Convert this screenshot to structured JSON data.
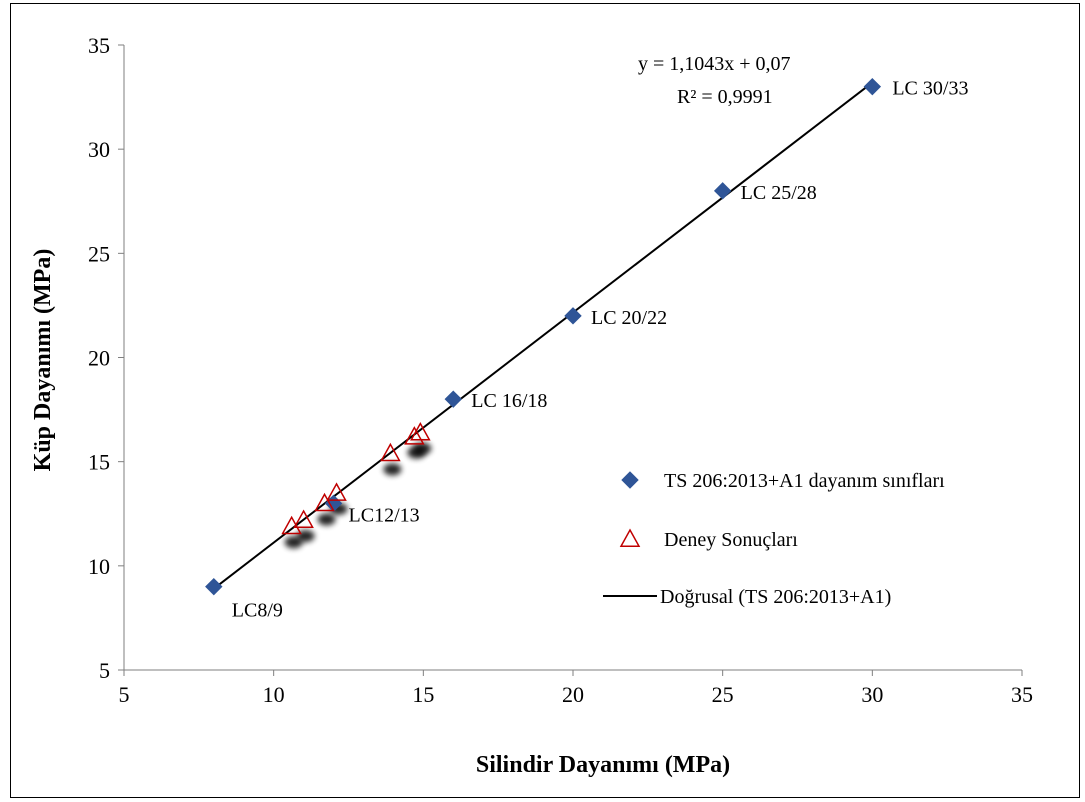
{
  "chart_data": {
    "type": "scatter",
    "xlabel": "Silindir Dayanımı (MPa)",
    "ylabel": "Küp Dayanımı (MPa)",
    "xlim": [
      5,
      35
    ],
    "ylim": [
      5,
      35
    ],
    "xticks": [
      5,
      10,
      15,
      20,
      25,
      30,
      35
    ],
    "yticks": [
      5,
      10,
      15,
      20,
      25,
      30,
      35
    ],
    "grid": false,
    "legend_position": "right",
    "series": [
      {
        "name": "TS 206:2013+A1 dayanım sınıfları",
        "marker": "diamond",
        "color": "#2F5597",
        "points": [
          {
            "x": 8,
            "y": 9,
            "label": "LC8/9"
          },
          {
            "x": 12,
            "y": 13,
            "label": "LC12/13"
          },
          {
            "x": 16,
            "y": 18,
            "label": "LC 16/18"
          },
          {
            "x": 20,
            "y": 22,
            "label": "LC 20/22"
          },
          {
            "x": 25,
            "y": 28,
            "label": "LC 25/28"
          },
          {
            "x": 30,
            "y": 33,
            "label": "LC 30/33"
          }
        ]
      },
      {
        "name": "Deney Sonuçları",
        "marker": "triangle-open",
        "color": "#C00000",
        "points": [
          {
            "x": 10.6,
            "y": 11.9
          },
          {
            "x": 11.0,
            "y": 12.2
          },
          {
            "x": 11.7,
            "y": 13.0
          },
          {
            "x": 12.1,
            "y": 13.5
          },
          {
            "x": 13.9,
            "y": 15.4
          },
          {
            "x": 14.7,
            "y": 16.2
          },
          {
            "x": 14.9,
            "y": 16.4
          }
        ]
      },
      {
        "name": "Doğrusal (TS 206:2013+A1)",
        "type": "trendline",
        "color": "#000000",
        "slope": 1.1043,
        "intercept": 0.07,
        "x_range": [
          8,
          30
        ]
      }
    ],
    "equation": "y = 1,1043x   + 0,07",
    "r_squared": "R² = 0,9991"
  }
}
